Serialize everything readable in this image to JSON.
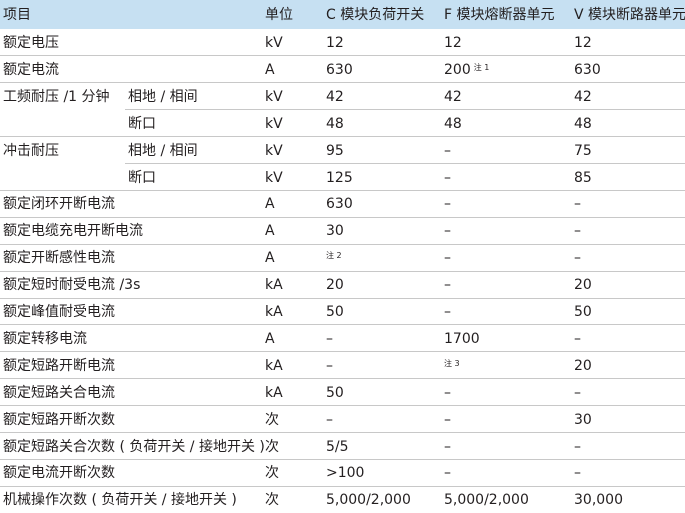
{
  "table": {
    "header": [
      "项目",
      "单位",
      "C 模块负荷开关",
      "F 模块熔断器单元",
      "V 模块断路器单元"
    ],
    "rows": [
      {
        "item": "额定电压",
        "unit": "kV",
        "c": "12",
        "f": "12",
        "v": "12"
      },
      {
        "item": "额定电流",
        "unit": "A",
        "c": "630",
        "f": "200",
        "f_note": "注 1",
        "v": "630"
      },
      {
        "item": "工频耐压 /1 分钟",
        "sub": "相地 / 相间",
        "unit": "kV",
        "c": "42",
        "f": "42",
        "v": "42"
      },
      {
        "sub": "断口",
        "unit": "kV",
        "c": "48",
        "f": "48",
        "v": "48"
      },
      {
        "item": "冲击耐压",
        "sub": "相地 / 相间",
        "unit": "kV",
        "c": "95",
        "f": "–",
        "v": "75"
      },
      {
        "sub": "断口",
        "unit": "kV",
        "c": "125",
        "f": "–",
        "v": "85"
      },
      {
        "item": "额定闭环开断电流",
        "unit": "A",
        "c": "630",
        "f": "–",
        "v": "–"
      },
      {
        "item": "额定电缆充电开断电流",
        "unit": "A",
        "c": "30",
        "f": "–",
        "v": "–"
      },
      {
        "item": "额定开断感性电流",
        "unit": "A",
        "c_note": "注 2",
        "f": "–",
        "v": "–"
      },
      {
        "item": "额定短时耐受电流 /3s",
        "unit": "kA",
        "c": "20",
        "f": "–",
        "v": "20"
      },
      {
        "item": "额定峰值耐受电流",
        "unit": "kA",
        "c": "50",
        "f": "–",
        "v": "50"
      },
      {
        "item": "额定转移电流",
        "unit": "A",
        "c": "–",
        "f": "1700",
        "v": "–"
      },
      {
        "item": "额定短路开断电流",
        "unit": "kA",
        "c": "–",
        "f_note": "注 3",
        "v": "20"
      },
      {
        "item": "额定短路关合电流",
        "unit": "kA",
        "c": "50",
        "f": "–",
        "v": "–"
      },
      {
        "item": "额定短路开断次数",
        "unit": "次",
        "c": "–",
        "f": "–",
        "v": "30"
      },
      {
        "item": "额定短路关合次数 ( 负荷开关 / 接地开关 )",
        "unit": "次",
        "c": "5/5",
        "f": "–",
        "v": "–"
      },
      {
        "item": "额定电流开断次数",
        "unit": "次",
        "c": ">100",
        "f": "–",
        "v": "–"
      },
      {
        "item": "机械操作次数 ( 负荷开关 / 接地开关 )",
        "unit": "次",
        "c": "5,000/2,000",
        "f": "5,000/2,000",
        "v": "30,000"
      }
    ]
  }
}
